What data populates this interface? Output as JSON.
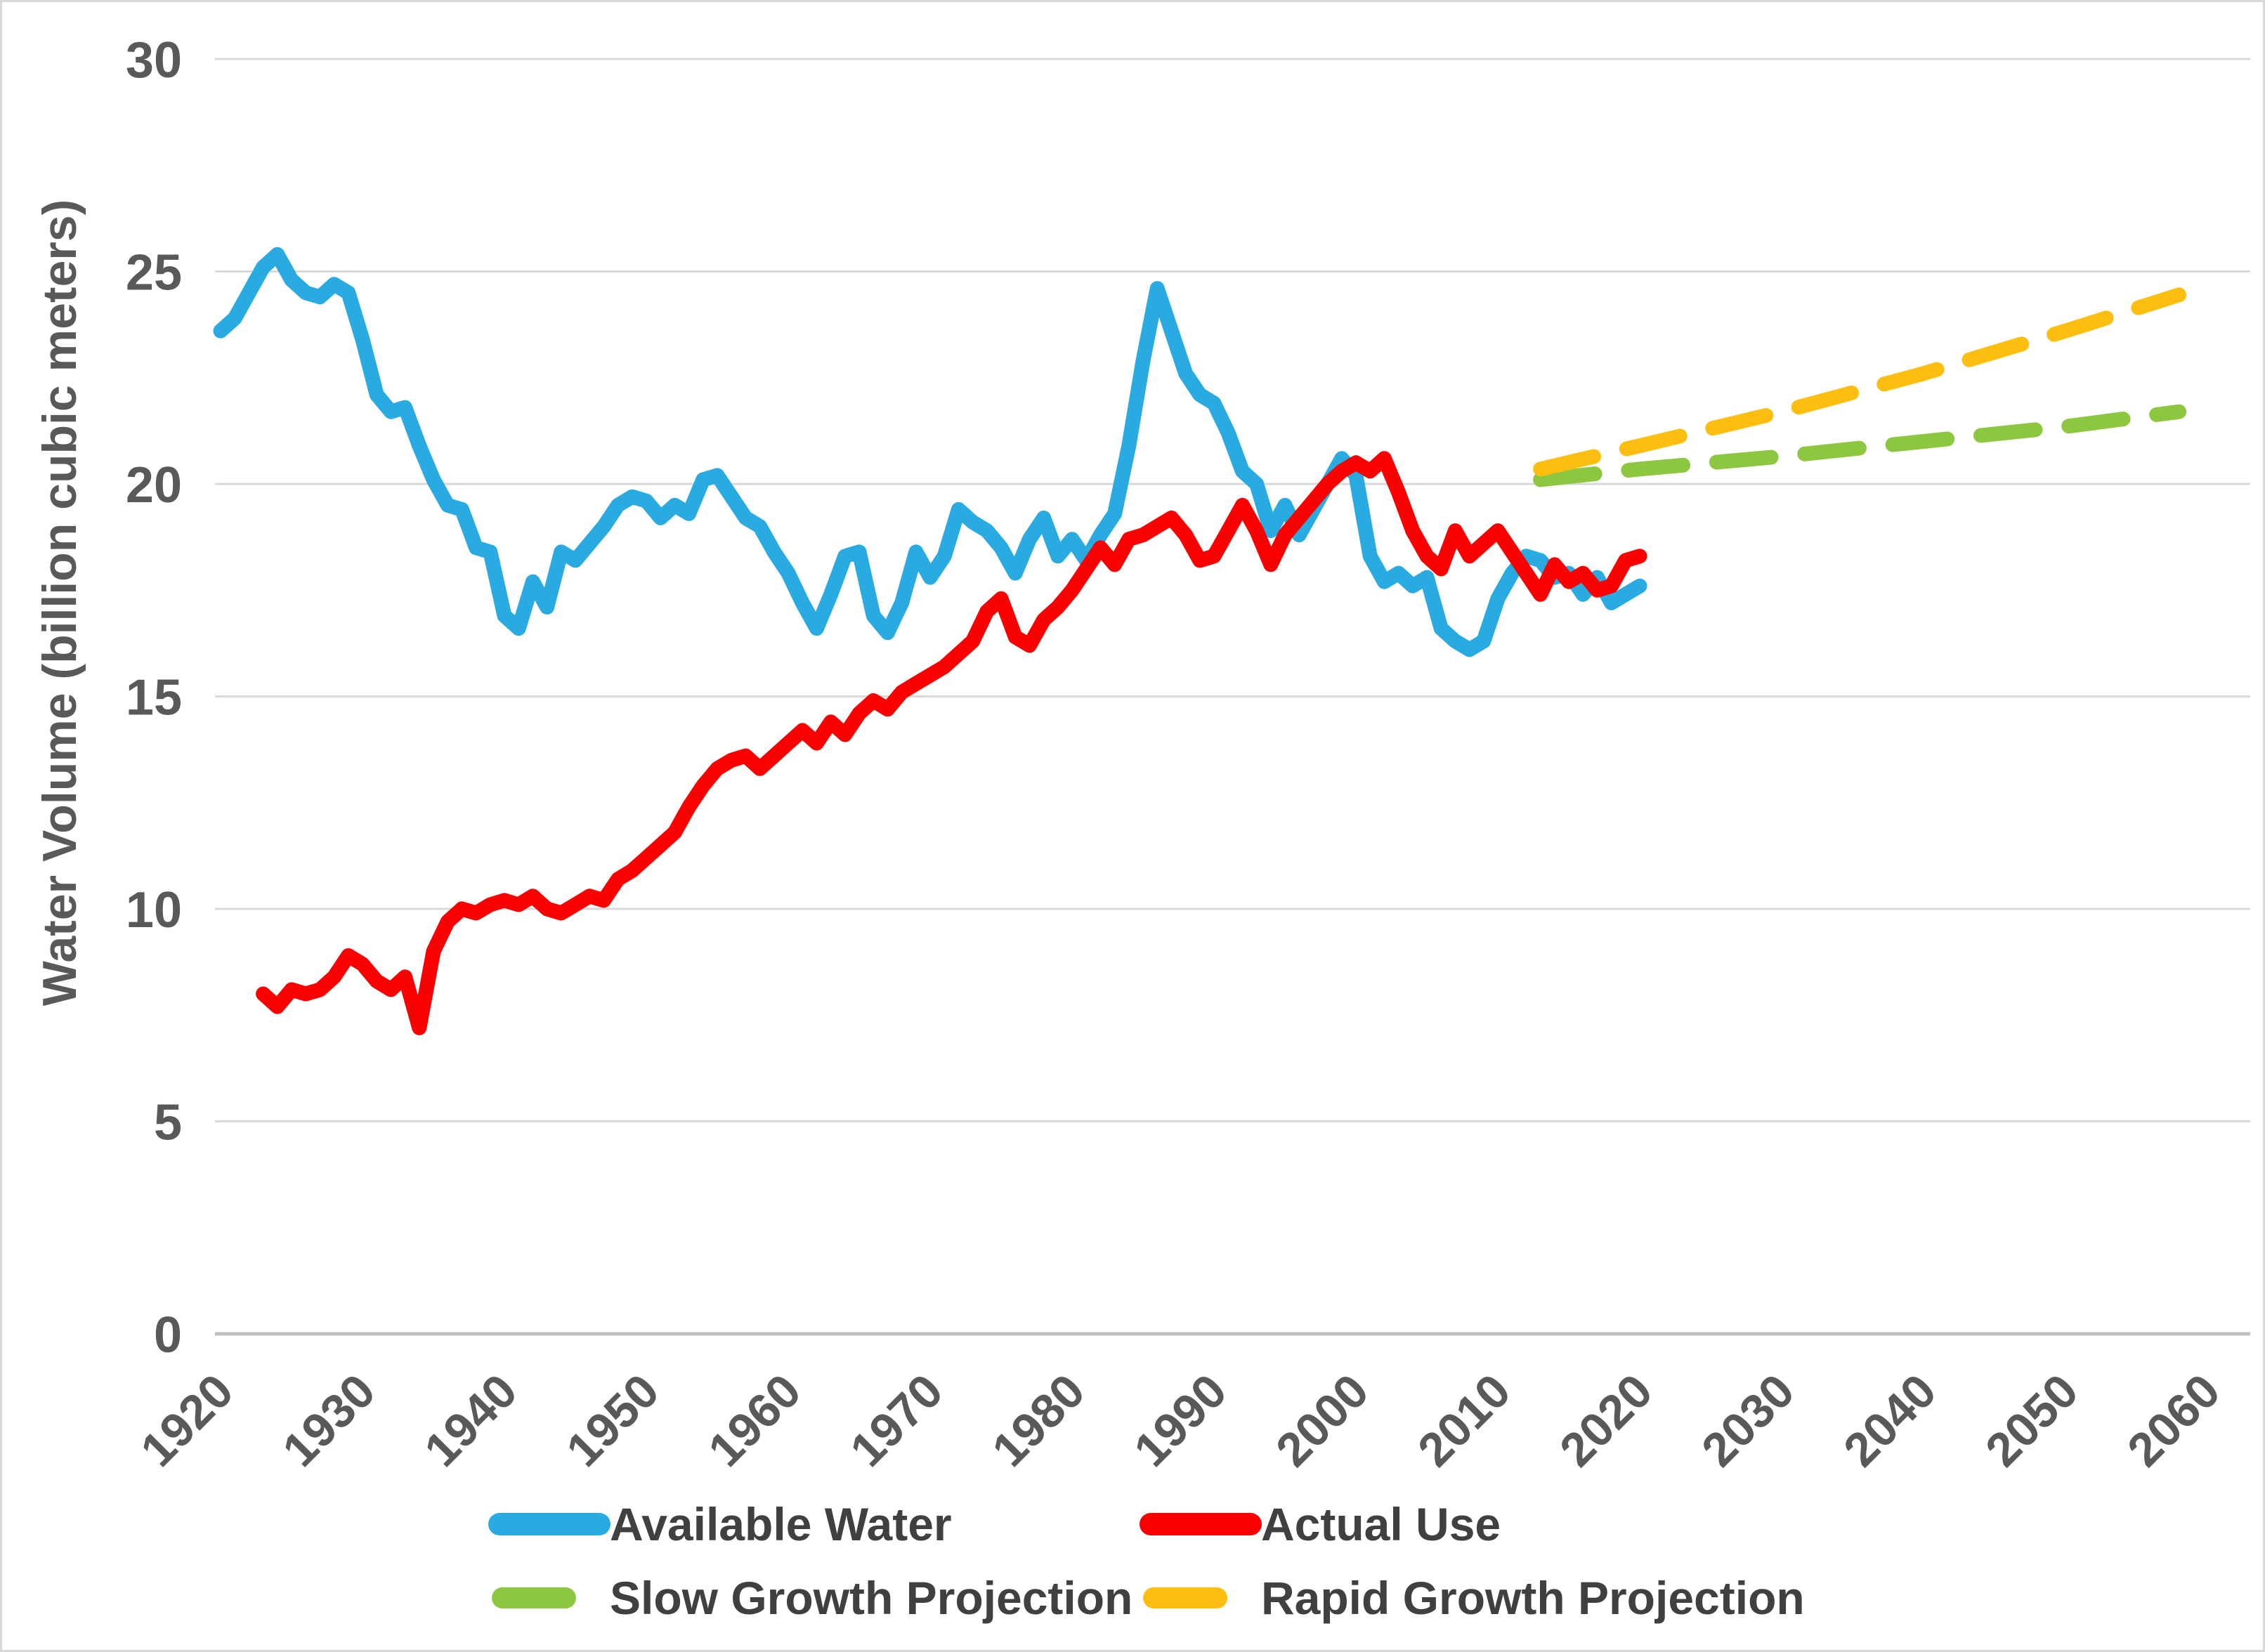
{
  "chart_data": {
    "type": "line",
    "title": "",
    "xlabel": "",
    "ylabel": "Water Volume  (billion  cubic meters)",
    "xlim": [
      1920,
      2060
    ],
    "ylim": [
      0,
      30
    ],
    "x_ticks": [
      1920,
      1930,
      1940,
      1950,
      1960,
      1970,
      1980,
      1990,
      2000,
      2010,
      2020,
      2030,
      2040,
      2050,
      2060
    ],
    "y_ticks": [
      0,
      5,
      10,
      15,
      20,
      25,
      30
    ],
    "grid": "horizontal-only",
    "gridline_color": "#d9d9d9",
    "axis_line_color": "#bfbfbf",
    "tick_label_color": "#595959",
    "legend_position": "bottom",
    "series": [
      {
        "name": "Available Water",
        "color": "#29ABE2",
        "style": "solid",
        "points": [
          [
            1920,
            23.6
          ],
          [
            1921,
            23.9
          ],
          [
            1922,
            24.5
          ],
          [
            1923,
            25.1
          ],
          [
            1924,
            25.4
          ],
          [
            1925,
            24.8
          ],
          [
            1926,
            24.5
          ],
          [
            1927,
            24.4
          ],
          [
            1928,
            24.7
          ],
          [
            1929,
            24.5
          ],
          [
            1930,
            23.4
          ],
          [
            1931,
            22.1
          ],
          [
            1932,
            21.7
          ],
          [
            1933,
            21.8
          ],
          [
            1934,
            20.9
          ],
          [
            1935,
            20.1
          ],
          [
            1936,
            19.5
          ],
          [
            1937,
            19.4
          ],
          [
            1938,
            18.5
          ],
          [
            1939,
            18.4
          ],
          [
            1940,
            16.9
          ],
          [
            1941,
            16.6
          ],
          [
            1942,
            17.7
          ],
          [
            1943,
            17.1
          ],
          [
            1944,
            18.4
          ],
          [
            1945,
            18.2
          ],
          [
            1946,
            18.6
          ],
          [
            1947,
            19.0
          ],
          [
            1948,
            19.5
          ],
          [
            1949,
            19.7
          ],
          [
            1950,
            19.6
          ],
          [
            1951,
            19.2
          ],
          [
            1952,
            19.5
          ],
          [
            1953,
            19.3
          ],
          [
            1954,
            20.1
          ],
          [
            1955,
            20.2
          ],
          [
            1956,
            19.7
          ],
          [
            1957,
            19.2
          ],
          [
            1958,
            19.0
          ],
          [
            1959,
            18.4
          ],
          [
            1960,
            17.9
          ],
          [
            1961,
            17.2
          ],
          [
            1962,
            16.6
          ],
          [
            1963,
            17.4
          ],
          [
            1964,
            18.3
          ],
          [
            1965,
            18.4
          ],
          [
            1966,
            16.9
          ],
          [
            1967,
            16.5
          ],
          [
            1968,
            17.2
          ],
          [
            1969,
            18.4
          ],
          [
            1970,
            17.8
          ],
          [
            1971,
            18.3
          ],
          [
            1972,
            19.4
          ],
          [
            1973,
            19.1
          ],
          [
            1974,
            18.9
          ],
          [
            1975,
            18.5
          ],
          [
            1976,
            17.9
          ],
          [
            1977,
            18.7
          ],
          [
            1978,
            19.2
          ],
          [
            1979,
            18.3
          ],
          [
            1980,
            18.7
          ],
          [
            1981,
            18.2
          ],
          [
            1982,
            18.8
          ],
          [
            1983,
            19.3
          ],
          [
            1984,
            20.9
          ],
          [
            1985,
            22.9
          ],
          [
            1986,
            24.6
          ],
          [
            1987,
            23.6
          ],
          [
            1988,
            22.6
          ],
          [
            1989,
            22.1
          ],
          [
            1990,
            21.9
          ],
          [
            1991,
            21.2
          ],
          [
            1992,
            20.3
          ],
          [
            1993,
            20.0
          ],
          [
            1994,
            18.9
          ],
          [
            1995,
            19.5
          ],
          [
            1996,
            18.8
          ],
          [
            1997,
            19.4
          ],
          [
            1998,
            20.0
          ],
          [
            1999,
            20.6
          ],
          [
            2000,
            20.2
          ],
          [
            2001,
            18.3
          ],
          [
            2002,
            17.7
          ],
          [
            2003,
            17.9
          ],
          [
            2004,
            17.6
          ],
          [
            2005,
            17.8
          ],
          [
            2006,
            16.6
          ],
          [
            2007,
            16.3
          ],
          [
            2008,
            16.1
          ],
          [
            2009,
            16.3
          ],
          [
            2010,
            17.3
          ],
          [
            2011,
            17.9
          ],
          [
            2012,
            18.3
          ],
          [
            2013,
            18.2
          ],
          [
            2014,
            17.8
          ],
          [
            2015,
            17.9
          ],
          [
            2016,
            17.4
          ],
          [
            2017,
            17.8
          ],
          [
            2018,
            17.2
          ],
          [
            2019,
            17.4
          ],
          [
            2020,
            17.6
          ]
        ]
      },
      {
        "name": "Actual Use",
        "color": "#FB0000",
        "style": "solid",
        "points": [
          [
            1923,
            8.0
          ],
          [
            1924,
            7.7
          ],
          [
            1925,
            8.1
          ],
          [
            1926,
            8.0
          ],
          [
            1927,
            8.1
          ],
          [
            1928,
            8.4
          ],
          [
            1929,
            8.9
          ],
          [
            1930,
            8.7
          ],
          [
            1931,
            8.3
          ],
          [
            1932,
            8.1
          ],
          [
            1933,
            8.4
          ],
          [
            1934,
            7.2
          ],
          [
            1935,
            9.0
          ],
          [
            1936,
            9.7
          ],
          [
            1937,
            10.0
          ],
          [
            1938,
            9.9
          ],
          [
            1939,
            10.1
          ],
          [
            1940,
            10.2
          ],
          [
            1941,
            10.1
          ],
          [
            1942,
            10.3
          ],
          [
            1943,
            10.0
          ],
          [
            1944,
            9.9
          ],
          [
            1945,
            10.1
          ],
          [
            1946,
            10.3
          ],
          [
            1947,
            10.2
          ],
          [
            1948,
            10.7
          ],
          [
            1949,
            10.9
          ],
          [
            1950,
            11.2
          ],
          [
            1951,
            11.5
          ],
          [
            1952,
            11.8
          ],
          [
            1953,
            12.4
          ],
          [
            1954,
            12.9
          ],
          [
            1955,
            13.3
          ],
          [
            1956,
            13.5
          ],
          [
            1957,
            13.6
          ],
          [
            1958,
            13.3
          ],
          [
            1959,
            13.6
          ],
          [
            1960,
            13.9
          ],
          [
            1961,
            14.2
          ],
          [
            1962,
            13.9
          ],
          [
            1963,
            14.4
          ],
          [
            1964,
            14.1
          ],
          [
            1965,
            14.6
          ],
          [
            1966,
            14.9
          ],
          [
            1967,
            14.7
          ],
          [
            1968,
            15.1
          ],
          [
            1969,
            15.3
          ],
          [
            1970,
            15.5
          ],
          [
            1971,
            15.7
          ],
          [
            1972,
            16.0
          ],
          [
            1973,
            16.3
          ],
          [
            1974,
            17.0
          ],
          [
            1975,
            17.3
          ],
          [
            1976,
            16.4
          ],
          [
            1977,
            16.2
          ],
          [
            1978,
            16.8
          ],
          [
            1979,
            17.1
          ],
          [
            1980,
            17.5
          ],
          [
            1981,
            18.0
          ],
          [
            1982,
            18.5
          ],
          [
            1983,
            18.1
          ],
          [
            1984,
            18.7
          ],
          [
            1985,
            18.8
          ],
          [
            1986,
            19.0
          ],
          [
            1987,
            19.2
          ],
          [
            1988,
            18.8
          ],
          [
            1989,
            18.2
          ],
          [
            1990,
            18.3
          ],
          [
            1991,
            18.9
          ],
          [
            1992,
            19.5
          ],
          [
            1993,
            18.9
          ],
          [
            1994,
            18.1
          ],
          [
            1995,
            18.8
          ],
          [
            1996,
            19.2
          ],
          [
            1997,
            19.6
          ],
          [
            1998,
            20.0
          ],
          [
            1999,
            20.3
          ],
          [
            2000,
            20.5
          ],
          [
            2001,
            20.3
          ],
          [
            2002,
            20.6
          ],
          [
            2003,
            19.8
          ],
          [
            2004,
            18.9
          ],
          [
            2005,
            18.3
          ],
          [
            2006,
            18.0
          ],
          [
            2007,
            18.9
          ],
          [
            2008,
            18.3
          ],
          [
            2009,
            18.6
          ],
          [
            2010,
            18.9
          ],
          [
            2011,
            18.4
          ],
          [
            2012,
            17.9
          ],
          [
            2013,
            17.4
          ],
          [
            2014,
            18.1
          ],
          [
            2015,
            17.7
          ],
          [
            2016,
            17.9
          ],
          [
            2017,
            17.5
          ],
          [
            2018,
            17.6
          ],
          [
            2019,
            18.2
          ],
          [
            2020,
            18.3
          ]
        ]
      },
      {
        "name": "Slow Growth Projection",
        "color": "#8DC63F",
        "style": "dashed",
        "points": [
          [
            2013,
            20.1
          ],
          [
            2020,
            20.35
          ],
          [
            2030,
            20.65
          ],
          [
            2040,
            21.0
          ],
          [
            2050,
            21.35
          ],
          [
            2058,
            21.7
          ]
        ]
      },
      {
        "name": "Rapid Growth Projection",
        "color": "#FEBE10",
        "style": "dashed",
        "points": [
          [
            2013,
            20.35
          ],
          [
            2020,
            20.9
          ],
          [
            2030,
            21.7
          ],
          [
            2040,
            22.6
          ],
          [
            2050,
            23.6
          ],
          [
            2058,
            24.45
          ]
        ]
      }
    ]
  }
}
